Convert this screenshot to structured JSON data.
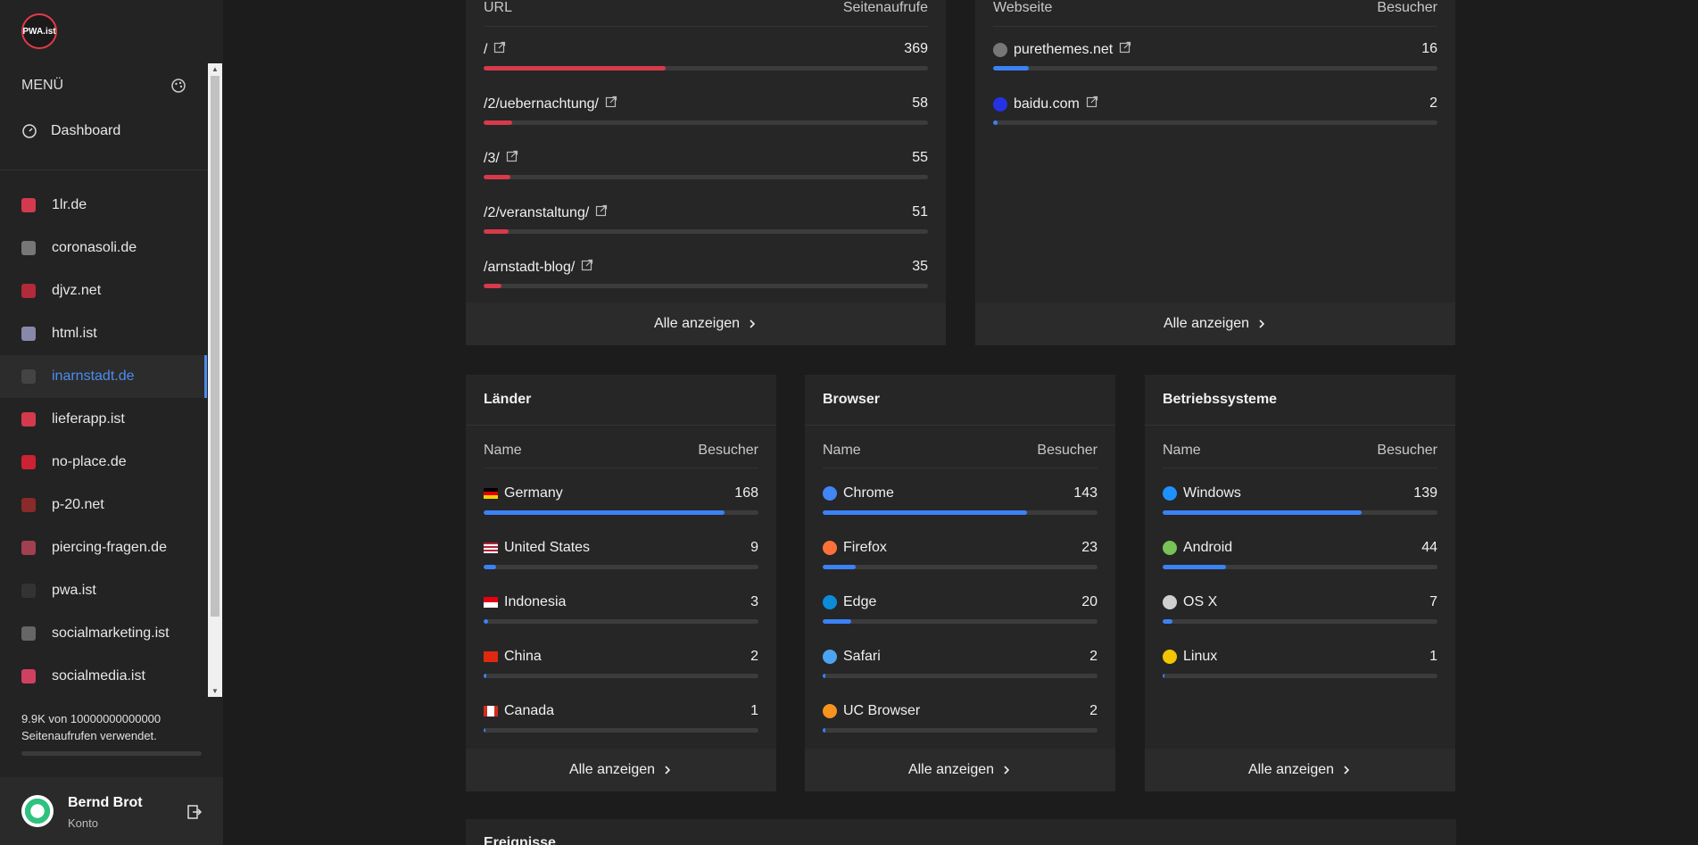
{
  "sidebar": {
    "logo_text": "PWA.ist",
    "menu_label": "MENÜ",
    "dashboard_label": "Dashboard",
    "sites": [
      {
        "label": "1lr.de",
        "color": "#d33a4e"
      },
      {
        "label": "coronasoli.de",
        "color": "#777777"
      },
      {
        "label": "djvz.net",
        "color": "#b32a3a"
      },
      {
        "label": "html.ist",
        "color": "#8888aa"
      },
      {
        "label": "inarnstadt.de",
        "color": "#444444",
        "active": true
      },
      {
        "label": "lieferapp.ist",
        "color": "#d33a4e"
      },
      {
        "label": "no-place.de",
        "color": "#cc2233"
      },
      {
        "label": "p-20.net",
        "color": "#8a2a2a"
      },
      {
        "label": "piercing-fragen.de",
        "color": "#a04050"
      },
      {
        "label": "pwa.ist",
        "color": "#333333"
      },
      {
        "label": "socialmarketing.ist",
        "color": "#666666"
      },
      {
        "label": "socialmedia.ist",
        "color": "#d04060"
      }
    ],
    "usage_text": "9.9K von 10000000000000 Seitenaufrufen verwendet.",
    "user_name": "Bernd Brot",
    "user_account": "Konto"
  },
  "pages_card": {
    "col_left": "URL",
    "col_right": "Seitenaufrufe",
    "rows": [
      {
        "label": "/",
        "value": "369",
        "fraction": 0.41
      },
      {
        "label": "/2/uebernachtung/",
        "value": "58",
        "fraction": 0.065
      },
      {
        "label": "/3/",
        "value": "55",
        "fraction": 0.06
      },
      {
        "label": "/2/veranstaltung/",
        "value": "51",
        "fraction": 0.057
      },
      {
        "label": "/arnstadt-blog/",
        "value": "35",
        "fraction": 0.04
      }
    ],
    "footer": "Alle anzeigen"
  },
  "referrers_card": {
    "col_left": "Webseite",
    "col_right": "Besucher",
    "rows": [
      {
        "label": "purethemes.net",
        "value": "16",
        "fraction": 0.08
      },
      {
        "label": "baidu.com",
        "value": "2",
        "fraction": 0.01
      }
    ],
    "footer": "Alle anzeigen"
  },
  "countries_card": {
    "title": "Länder",
    "col_left": "Name",
    "col_right": "Besucher",
    "rows": [
      {
        "label": "Germany",
        "value": "168",
        "fraction": 0.875
      },
      {
        "label": "United States",
        "value": "9",
        "fraction": 0.045
      },
      {
        "label": "Indonesia",
        "value": "3",
        "fraction": 0.015
      },
      {
        "label": "China",
        "value": "2",
        "fraction": 0.01
      },
      {
        "label": "Canada",
        "value": "1",
        "fraction": 0.005
      }
    ],
    "footer": "Alle anzeigen"
  },
  "browsers_card": {
    "title": "Browser",
    "col_left": "Name",
    "col_right": "Besucher",
    "rows": [
      {
        "label": "Chrome",
        "value": "143",
        "fraction": 0.745
      },
      {
        "label": "Firefox",
        "value": "23",
        "fraction": 0.12
      },
      {
        "label": "Edge",
        "value": "20",
        "fraction": 0.105
      },
      {
        "label": "Safari",
        "value": "2",
        "fraction": 0.01
      },
      {
        "label": "UC Browser",
        "value": "2",
        "fraction": 0.01
      }
    ],
    "footer": "Alle anzeigen"
  },
  "os_card": {
    "title": "Betriebssysteme",
    "col_left": "Name",
    "col_right": "Besucher",
    "rows": [
      {
        "label": "Windows",
        "value": "139",
        "fraction": 0.725
      },
      {
        "label": "Android",
        "value": "44",
        "fraction": 0.23
      },
      {
        "label": "OS X",
        "value": "7",
        "fraction": 0.036
      },
      {
        "label": "Linux",
        "value": "1",
        "fraction": 0.005
      }
    ],
    "footer": "Alle anzeigen"
  },
  "events_card": {
    "title": "Ereignisse"
  },
  "colors": {
    "red_bar": "#d63a4b",
    "blue_bar": "#3b82f6",
    "accent": "#4a8df0"
  }
}
